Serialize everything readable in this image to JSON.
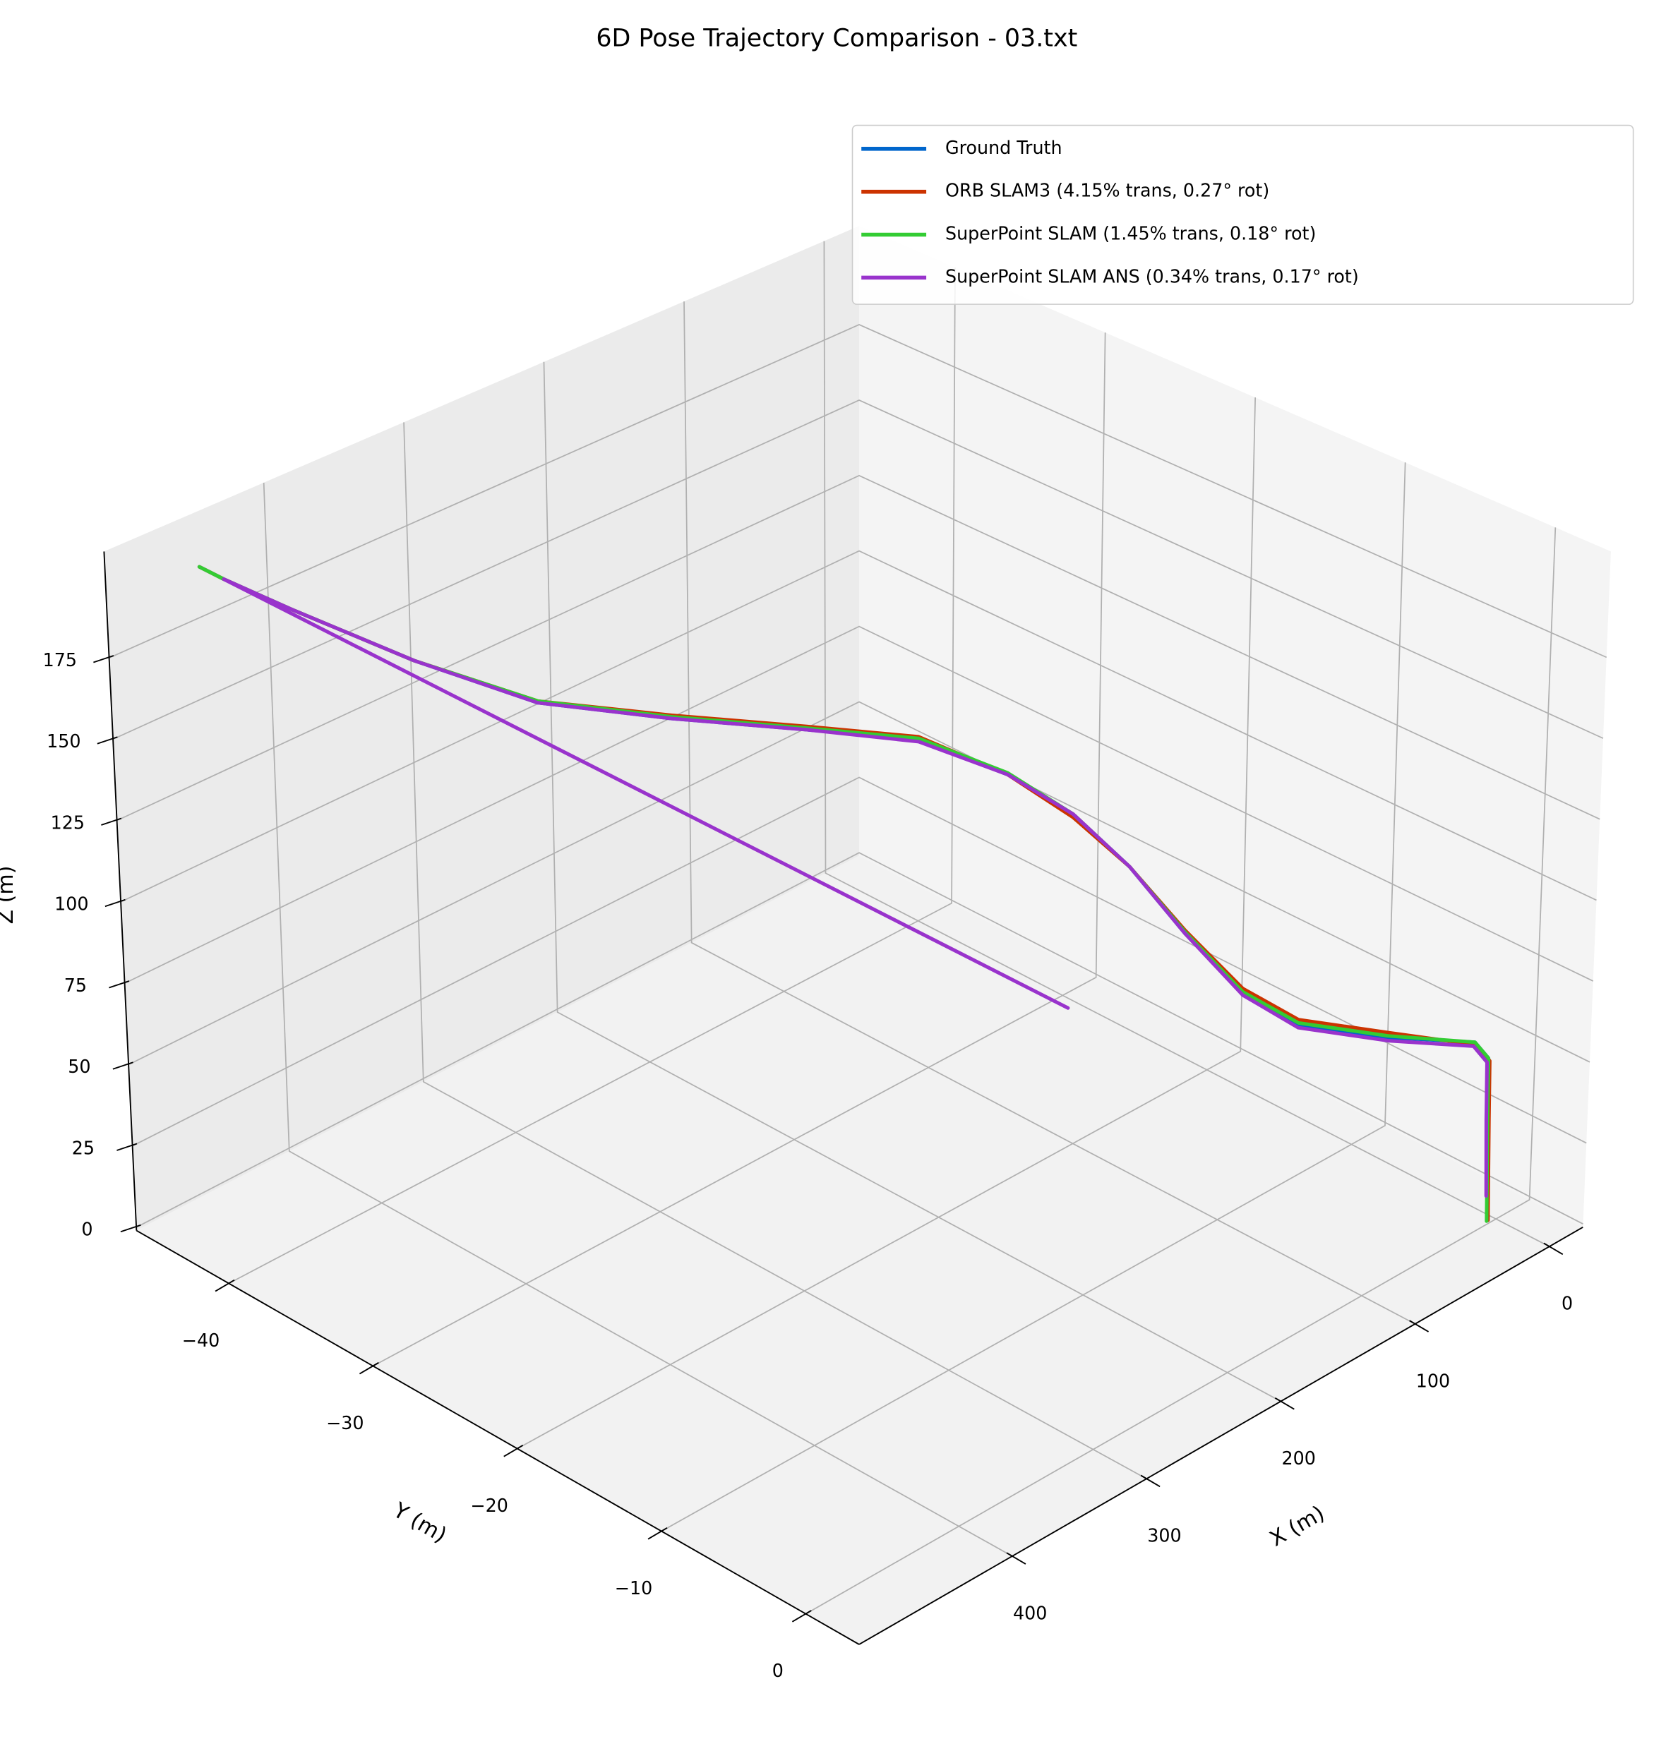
{
  "chart_data": {
    "type": "line3d",
    "title": "6D Pose Trajectory Comparison - 03.txt",
    "xlabel": "X (m)",
    "ylabel": "Y (m)",
    "zlabel": "Z (m)",
    "xlim": [
      -25,
      514
    ],
    "ylim": [
      -46.4,
      3.7
    ],
    "zlim": [
      -1,
      207.7
    ],
    "xticks": [
      0,
      100,
      200,
      300,
      400
    ],
    "yticks": [
      {
        "value": -40,
        "label": "−40"
      },
      {
        "value": -30,
        "label": "−30"
      },
      {
        "value": -20,
        "label": "−20"
      },
      {
        "value": -10,
        "label": "−10"
      },
      0
    ],
    "zticks": [
      0,
      25,
      50,
      75,
      100,
      125,
      150,
      175
    ],
    "grid": true,
    "legend": "upper right",
    "series": [
      {
        "name": "Ground Truth",
        "color": "#0066cc",
        "x": [
          6,
          9,
          10,
          15,
          48,
          81,
          102,
          129,
          150,
          170,
          193,
          221,
          261,
          309,
          356,
          399,
          441,
          464,
          472.5
        ],
        "y": [
          0,
          0,
          0,
          -0.5,
          -3.4,
          -6.5,
          -8.4,
          -9.9,
          -11.8,
          -13.8,
          -16.1,
          -19.5,
          -23.3,
          -27.9,
          -32.5,
          -36.7,
          -40.9,
          -43.2,
          -44
        ],
        "z": [
          0,
          32,
          51,
          56,
          58.5,
          63,
          73,
          94,
          115,
          131,
          143,
          152,
          155,
          158,
          162,
          174,
          188.5,
          197,
          200.6
        ]
      },
      {
        "name": "ORB SLAM3 (4.15% trans, 0.27° rot)",
        "color": "#cc3300",
        "x": [
          6,
          8,
          9,
          14,
          48,
          81,
          102,
          129,
          150,
          170,
          193,
          221,
          261,
          309,
          356,
          399,
          441,
          464,
          472.5
        ],
        "y": [
          0,
          0,
          0,
          -0.5,
          -3.4,
          -6.5,
          -8.4,
          -9.9,
          -11.8,
          -13.8,
          -16.1,
          -19.5,
          -23.3,
          -27.9,
          -32.5,
          -36.7,
          -40.9,
          -43.2,
          -44
        ],
        "z": [
          0,
          32,
          50,
          55,
          60,
          64.5,
          74.5,
          95,
          115,
          130,
          143,
          153,
          156,
          159,
          162.5,
          174,
          188.5,
          197,
          200.6
        ]
      },
      {
        "name": "SuperPoint SLAM (1.45% trans, 0.18° rot)",
        "color": "#33cc33",
        "x": [
          7,
          9,
          10,
          15,
          48,
          81,
          102,
          129,
          150,
          170,
          193,
          221,
          261,
          309,
          356,
          399,
          441,
          464,
          472.5
        ],
        "y": [
          0,
          0,
          0,
          -0.5,
          -3.4,
          -6.5,
          -8.4,
          -9.9,
          -11.8,
          -13.8,
          -16.1,
          -19.5,
          -23.3,
          -27.9,
          -32.5,
          -36.7,
          -40.9,
          -43.2,
          -44
        ],
        "z": [
          0,
          32,
          51,
          56,
          59,
          63.5,
          73.5,
          94.5,
          115,
          131,
          143.5,
          152.5,
          155.5,
          158.5,
          162.5,
          174,
          188.5,
          197,
          200.6
        ]
      },
      {
        "name": "SuperPoint SLAM ANS (0.34% trans, 0.17° rot)",
        "color": "#9933cc",
        "x": [
          8,
          10,
          11,
          16,
          48,
          81,
          102,
          129,
          150,
          170,
          193,
          221,
          261,
          309,
          356,
          399,
          441,
          464,
          83
        ],
        "y": [
          0,
          0,
          0,
          -0.5,
          -3.4,
          -6.5,
          -8.4,
          -9.9,
          -11.8,
          -13.8,
          -16.1,
          -19.5,
          -23.3,
          -27.9,
          -32.5,
          -36.7,
          -40.9,
          -43.2,
          -22
        ],
        "z": [
          8,
          32,
          50,
          55,
          57.5,
          62,
          72.5,
          94,
          115,
          131,
          143,
          151.5,
          155,
          158,
          162,
          174,
          188.5,
          197,
          33
        ]
      }
    ]
  }
}
